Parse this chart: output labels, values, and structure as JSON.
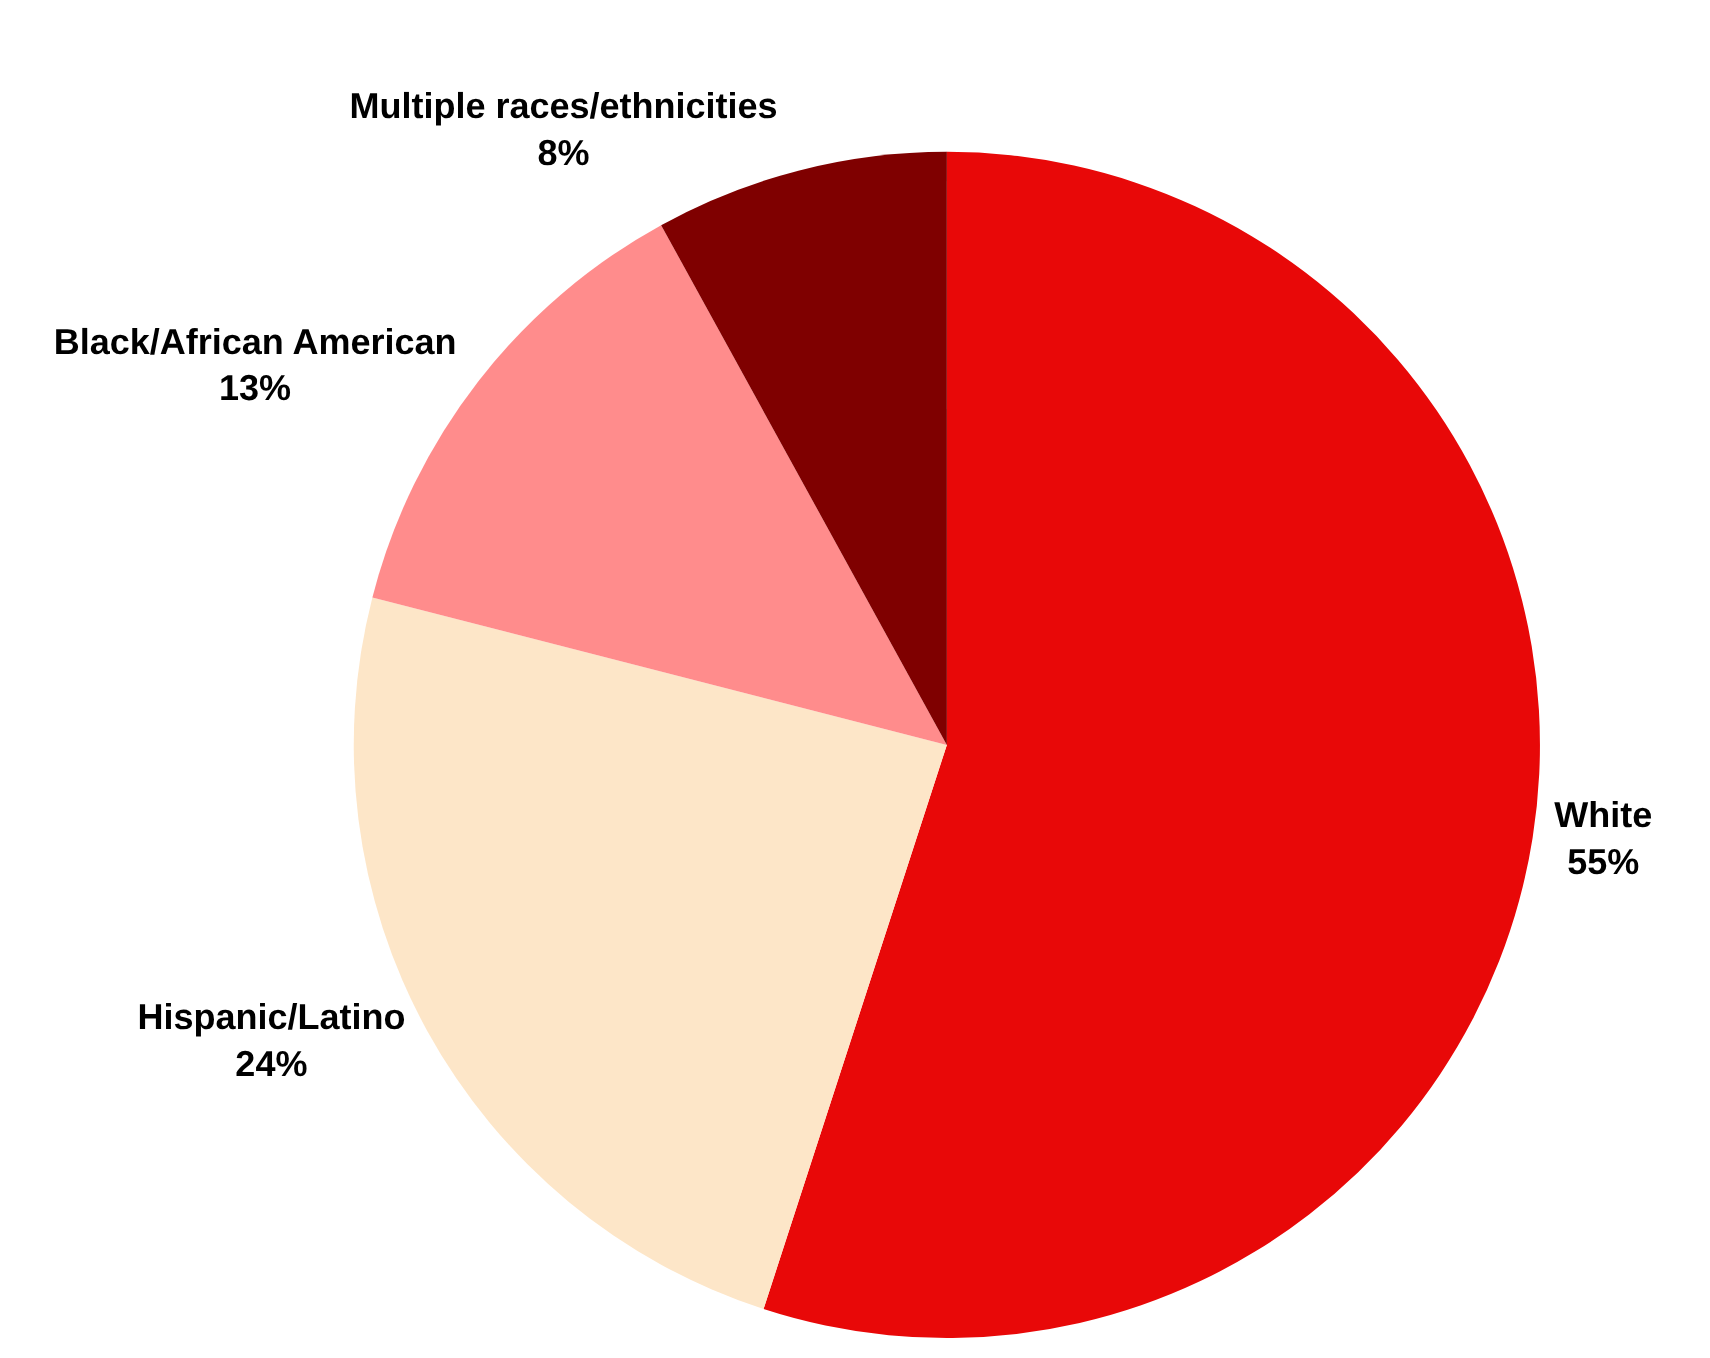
{
  "chart_data": {
    "type": "pie",
    "categories": [
      "White",
      "Hispanic/Latino",
      "Black/African American",
      "Multiple races/ethnicities"
    ],
    "values": [
      55,
      24,
      13,
      8
    ],
    "colors": [
      "#e80808",
      "#fde6c8",
      "#ff8c8c",
      "#7f0000"
    ],
    "value_labels": [
      "55%",
      "24%",
      "13%",
      "8%"
    ],
    "legend": false
  }
}
